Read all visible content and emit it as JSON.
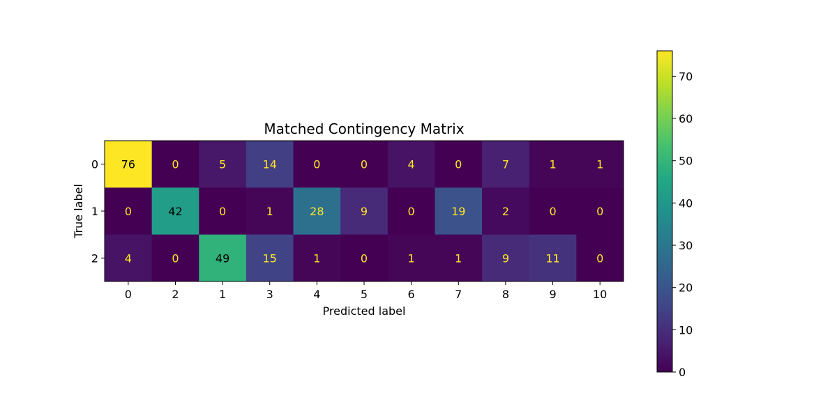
{
  "chart_data": {
    "type": "heatmap",
    "title": "Matched Contingency Matrix",
    "xlabel": "Predicted label",
    "ylabel": "True label",
    "x_categories": [
      "0",
      "2",
      "1",
      "3",
      "4",
      "5",
      "6",
      "7",
      "8",
      "9",
      "10"
    ],
    "y_categories": [
      "0",
      "1",
      "2"
    ],
    "values": [
      [
        76,
        0,
        5,
        14,
        0,
        0,
        4,
        0,
        7,
        1,
        1
      ],
      [
        0,
        42,
        0,
        1,
        28,
        9,
        0,
        19,
        2,
        0,
        0
      ],
      [
        4,
        0,
        49,
        15,
        1,
        0,
        1,
        1,
        9,
        11,
        0
      ]
    ],
    "colormap": "viridis",
    "value_range": [
      0,
      76
    ],
    "colorbar_ticks": [
      0,
      10,
      20,
      30,
      40,
      50,
      60,
      70
    ],
    "text_color_low": "#fde725",
    "text_color_high": "#000000",
    "grid": false
  }
}
